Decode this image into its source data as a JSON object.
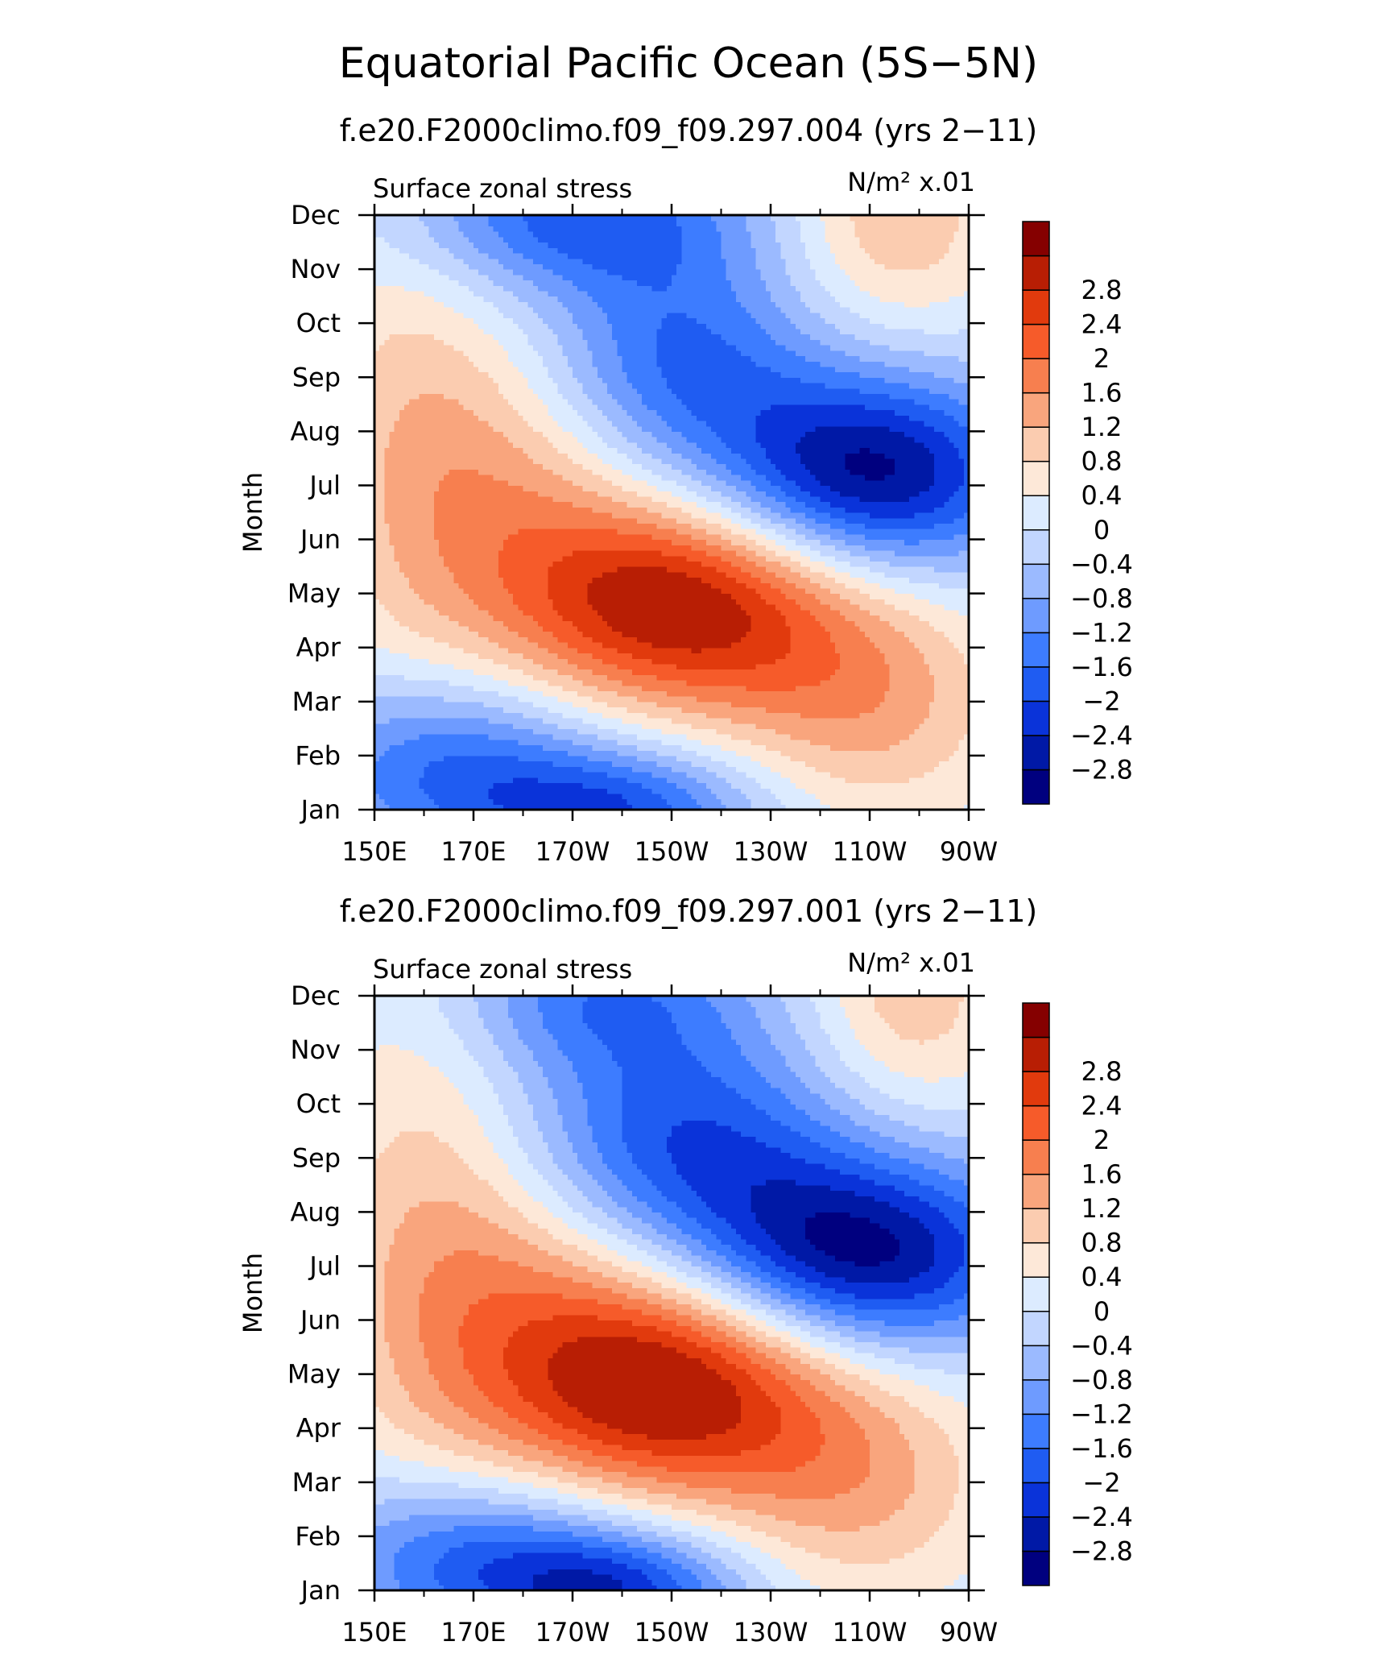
{
  "title": "Equatorial Pacific Ocean (5S−5N)",
  "colorbar": {
    "levels": [
      -2.8,
      -2.4,
      -2,
      -1.6,
      -1.2,
      -0.8,
      -0.4,
      0,
      0.4,
      0.8,
      1.2,
      1.6,
      2,
      2.4,
      2.8
    ],
    "labels": [
      "−2.8",
      "−2.4",
      "−2",
      "−1.6",
      "−1.2",
      "−0.8",
      "−0.4",
      "0",
      "0.4",
      "0.8",
      "1.2",
      "1.6",
      "2",
      "2.4",
      "2.8"
    ],
    "colors": [
      "#00007f",
      "#0019a6",
      "#0a33d9",
      "#1f5cf2",
      "#3d7cff",
      "#6e9bff",
      "#9bbaff",
      "#c2d6ff",
      "#dcebff",
      "#fde8d8",
      "#fbccb0",
      "#f9a57d",
      "#f77f4f",
      "#f65b2a",
      "#e13a0d",
      "#b81e04",
      "#850000"
    ]
  },
  "chart_data": [
    {
      "type": "heatmap",
      "subtitle": "f.e20.F2000climo.f09_f09.297.004 (yrs 2−11)",
      "variable_label": "Surface zonal stress",
      "units_label": "N/m² x.01",
      "ylabel": "Month",
      "x_ticks": [
        "150E",
        "170E",
        "170W",
        "150W",
        "130W",
        "110W",
        "90W"
      ],
      "x_tick_lon": [
        150,
        170,
        190,
        210,
        230,
        250,
        270
      ],
      "y_ticks": [
        "Jan",
        "Feb",
        "Mar",
        "Apr",
        "May",
        "Jun",
        "Jul",
        "Aug",
        "Sep",
        "Oct",
        "Nov",
        "Dec"
      ],
      "xlim_lon": [
        150,
        270
      ],
      "anomalies": [
        {
          "lon": 212,
          "month": 3.8,
          "amp": 3.1,
          "slon": 24,
          "smon": 1.4
        },
        {
          "lon": 176,
          "month": 6.0,
          "amp": 1.3,
          "slon": 20,
          "smon": 2.2
        },
        {
          "lon": 250,
          "month": 2.0,
          "amp": 1.3,
          "slon": 20,
          "smon": 1.6
        },
        {
          "lon": 155,
          "month": 7.5,
          "amp": 0.6,
          "slon": 14,
          "smon": 4.0
        },
        {
          "lon": 250,
          "month": 6.2,
          "amp": -3.0,
          "slon": 22,
          "smon": 1.3
        },
        {
          "lon": 210,
          "month": 8.3,
          "amp": -1.7,
          "slon": 20,
          "smon": 1.5
        },
        {
          "lon": 190,
          "month": 11.0,
          "amp": -1.8,
          "slon": 25,
          "smon": 1.0
        },
        {
          "lon": 165,
          "month": 0.8,
          "amp": -1.7,
          "slon": 22,
          "smon": 1.2
        },
        {
          "lon": 200,
          "month": 0.0,
          "amp": -1.8,
          "slon": 20,
          "smon": 0.8
        },
        {
          "lon": 255,
          "month": 11.0,
          "amp": 1.2,
          "slon": 15,
          "smon": 1.5
        }
      ]
    },
    {
      "type": "heatmap",
      "subtitle": "f.e20.F2000climo.f09_f09.297.001 (yrs 2−11)",
      "variable_label": "Surface zonal stress",
      "units_label": "N/m² x.01",
      "ylabel": "Month",
      "x_ticks": [
        "150E",
        "170E",
        "170W",
        "150W",
        "130W",
        "110W",
        "90W"
      ],
      "x_tick_lon": [
        150,
        170,
        190,
        210,
        230,
        250,
        270
      ],
      "y_ticks": [
        "Jan",
        "Feb",
        "Mar",
        "Apr",
        "May",
        "Jun",
        "Jul",
        "Aug",
        "Sep",
        "Oct",
        "Nov",
        "Dec"
      ],
      "xlim_lon": [
        150,
        270
      ],
      "anomalies": [
        {
          "lon": 210,
          "month": 3.8,
          "amp": 3.1,
          "slon": 24,
          "smon": 1.5
        },
        {
          "lon": 178,
          "month": 5.5,
          "amp": 1.2,
          "slon": 22,
          "smon": 2.3
        },
        {
          "lon": 248,
          "month": 2.0,
          "amp": 1.2,
          "slon": 20,
          "smon": 1.6
        },
        {
          "lon": 160,
          "month": 7.5,
          "amp": 0.7,
          "slon": 16,
          "smon": 4.0
        },
        {
          "lon": 248,
          "month": 6.2,
          "amp": -3.0,
          "slon": 24,
          "smon": 1.3
        },
        {
          "lon": 210,
          "month": 8.3,
          "amp": -2.0,
          "slon": 24,
          "smon": 1.5
        },
        {
          "lon": 195,
          "month": 11.0,
          "amp": -1.4,
          "slon": 22,
          "smon": 1.0
        },
        {
          "lon": 170,
          "month": 0.6,
          "amp": -1.8,
          "slon": 22,
          "smon": 1.1
        },
        {
          "lon": 200,
          "month": 0.0,
          "amp": -2.0,
          "slon": 18,
          "smon": 0.8
        },
        {
          "lon": 258,
          "month": 11.0,
          "amp": 1.1,
          "slon": 14,
          "smon": 1.6
        }
      ]
    }
  ]
}
